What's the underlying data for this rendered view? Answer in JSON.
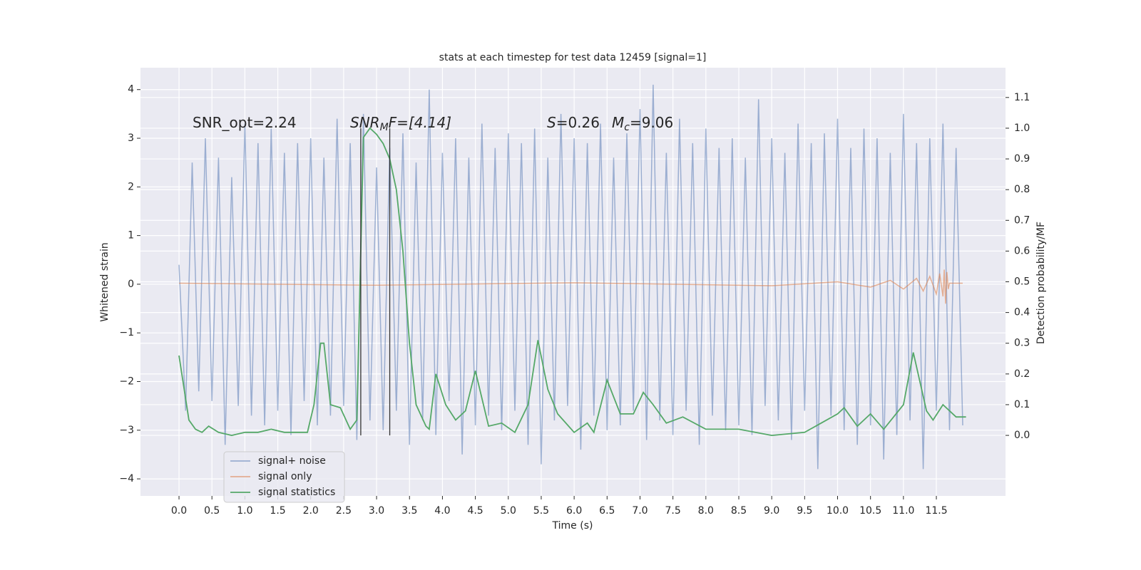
{
  "chart_data": {
    "type": "line",
    "title": "stats at each timestep for test data 12459 [signal=1]",
    "xlabel": "Time (s)",
    "ylabel": "Whitened strain",
    "y2label": "Detection probability/MF",
    "annotations": [
      {
        "text": "SNR_opt=2.24"
      },
      {
        "text": "SNR",
        "sub": "M",
        "rest": "F=[4.14]"
      },
      {
        "text": "S",
        "rest": "=0.26"
      },
      {
        "text": "M",
        "sub": "c",
        "rest": "=9.06"
      }
    ],
    "xlim": [
      -0.585,
      12.55
    ],
    "ylim": [
      -4.35,
      4.45
    ],
    "y2lim": [
      -0.197,
      1.197
    ],
    "xticks": [
      {
        "value": 0,
        "label": "0.0"
      },
      0.5,
      {
        "value": 1,
        "label": "1.0"
      },
      1.5,
      {
        "value": 2,
        "label": "2.0"
      },
      2.5,
      {
        "value": 3,
        "label": "3.0"
      },
      3.5,
      {
        "value": 4,
        "label": "4.0"
      },
      4.5,
      {
        "value": 5,
        "label": "5.0"
      },
      5.5,
      {
        "value": 6,
        "label": "6.0"
      },
      6.5,
      {
        "value": 7,
        "label": "7.0"
      },
      7.5,
      {
        "value": 8,
        "label": "8.0"
      },
      8.5,
      {
        "value": 9,
        "label": "9.0"
      },
      9.5,
      {
        "value": 10,
        "label": "10.0"
      },
      10.5,
      {
        "value": 11,
        "label": "11.0"
      },
      11.5
    ],
    "yticks": [
      {
        "value": -4,
        "label": "−4"
      },
      {
        "value": -3,
        "label": "−3"
      },
      {
        "value": -2,
        "label": "−2"
      },
      {
        "value": -1,
        "label": "−1"
      },
      0,
      1,
      2,
      3,
      4
    ],
    "y2ticks": [
      {
        "value": 0,
        "label": "0.0"
      },
      0.1,
      0.2,
      0.3,
      0.4,
      0.5,
      0.6,
      0.7,
      0.8,
      0.9,
      {
        "value": 1,
        "label": "1.0"
      },
      1.1
    ],
    "grid": true,
    "legend": "lower left",
    "vlines": {
      "x": [
        2.76,
        3.2
      ],
      "ymin": 0,
      "ymax": 1,
      "axis": "y2",
      "color": "#333333"
    },
    "series": [
      {
        "name": "signal+ noise",
        "color": "#4c72b0",
        "alpha": 0.5,
        "x": [
          0,
          0.1,
          0.2,
          0.3,
          0.4,
          0.5,
          0.6,
          0.7,
          0.8,
          0.9,
          1,
          1.1,
          1.2,
          1.3,
          1.4,
          1.5,
          1.6,
          1.7,
          1.8,
          1.9,
          2,
          2.1,
          2.2,
          2.3,
          2.4,
          2.5,
          2.6,
          2.7,
          2.8,
          2.9,
          3,
          3.1,
          3.2,
          3.3,
          3.4,
          3.5,
          3.6,
          3.7,
          3.8,
          3.9,
          4,
          4.1,
          4.2,
          4.3,
          4.4,
          4.5,
          4.6,
          4.7,
          4.8,
          4.9,
          5,
          5.1,
          5.2,
          5.3,
          5.4,
          5.5,
          5.6,
          5.7,
          5.8,
          5.9,
          6,
          6.1,
          6.2,
          6.3,
          6.4,
          6.5,
          6.6,
          6.7,
          6.8,
          6.9,
          7,
          7.1,
          7.2,
          7.3,
          7.4,
          7.5,
          7.6,
          7.7,
          7.8,
          7.9,
          8,
          8.1,
          8.2,
          8.3,
          8.4,
          8.5,
          8.6,
          8.7,
          8.8,
          8.9,
          9,
          9.1,
          9.2,
          9.3,
          9.4,
          9.5,
          9.6,
          9.7,
          9.8,
          9.9,
          10,
          10.1,
          10.2,
          10.3,
          10.4,
          10.5,
          10.6,
          10.7,
          10.8,
          10.9,
          11,
          11.1,
          11.2,
          11.3,
          11.4,
          11.5,
          11.6,
          11.7,
          11.8,
          11.9
        ],
        "values": [
          0.4,
          -2.6,
          2.5,
          -2.2,
          3.0,
          -2.4,
          2.6,
          -3.3,
          2.2,
          -2.5,
          3.3,
          -2.7,
          2.9,
          -2.9,
          3.2,
          -2.6,
          2.7,
          -3.1,
          2.9,
          -2.4,
          3.0,
          -2.9,
          2.6,
          -2.7,
          3.4,
          -2.5,
          2.9,
          -3.2,
          3.5,
          -2.8,
          2.4,
          -3.0,
          2.8,
          -2.6,
          3.1,
          -3.3,
          2.5,
          -2.8,
          4.0,
          -3.1,
          2.7,
          -2.4,
          3.0,
          -3.5,
          2.6,
          -2.9,
          3.3,
          -2.7,
          2.8,
          -3.0,
          3.1,
          -2.6,
          2.9,
          -3.3,
          3.2,
          -3.7,
          2.6,
          -2.8,
          3.5,
          -2.5,
          3.0,
          -3.4,
          2.9,
          -2.7,
          3.3,
          -3.0,
          2.6,
          -2.9,
          3.1,
          -2.6,
          3.6,
          -3.2,
          4.1,
          -2.8,
          2.7,
          -3.1,
          3.4,
          -2.6,
          2.9,
          -3.3,
          3.2,
          -2.7,
          2.8,
          -3.0,
          3.0,
          -2.9,
          2.6,
          -3.1,
          3.8,
          -2.5,
          3.0,
          -2.8,
          2.7,
          -3.2,
          3.3,
          -2.6,
          2.9,
          -3.8,
          3.1,
          -2.7,
          3.4,
          -3.0,
          2.8,
          -3.3,
          3.2,
          -2.9,
          3.0,
          -3.6,
          2.7,
          -3.1,
          3.5,
          -2.8,
          2.9,
          -3.8,
          3.0,
          -2.6,
          3.3,
          -3.0,
          2.8,
          -2.9
        ]
      },
      {
        "name": "signal only",
        "color": "#dd8452",
        "alpha": 0.6,
        "x": [
          0,
          3,
          6,
          9,
          10,
          10.5,
          10.8,
          11,
          11.2,
          11.3,
          11.4,
          11.5,
          11.55,
          11.6,
          11.62,
          11.64,
          11.66,
          11.68,
          11.7,
          11.9
        ],
        "values": [
          0.02,
          -0.02,
          0.03,
          -0.03,
          0.05,
          -0.06,
          0.08,
          -0.1,
          0.12,
          -0.14,
          0.16,
          -0.2,
          0.22,
          -0.25,
          0.3,
          -0.4,
          0.25,
          -0.1,
          0.02,
          0.02
        ]
      },
      {
        "name": "signal statistics",
        "color": "#55a868",
        "alpha": 1,
        "axis": "y2",
        "x": [
          0,
          0.15,
          0.25,
          0.35,
          0.45,
          0.6,
          0.8,
          1.0,
          1.2,
          1.4,
          1.6,
          1.8,
          1.95,
          2.05,
          2.15,
          2.2,
          2.3,
          2.45,
          2.6,
          2.7,
          2.8,
          2.9,
          3.0,
          3.1,
          3.2,
          3.3,
          3.4,
          3.5,
          3.6,
          3.75,
          3.8,
          3.9,
          4.05,
          4.2,
          4.35,
          4.5,
          4.7,
          4.9,
          5.1,
          5.3,
          5.45,
          5.6,
          5.75,
          6.0,
          6.2,
          6.3,
          6.5,
          6.7,
          6.9,
          7.05,
          7.2,
          7.4,
          7.65,
          8.0,
          8.5,
          9.0,
          9.5,
          10.0,
          10.1,
          10.3,
          10.5,
          10.7,
          11.0,
          11.15,
          11.35,
          11.45,
          11.6,
          11.8,
          11.95
        ],
        "values": [
          0.26,
          0.05,
          0.02,
          0.01,
          0.03,
          0.01,
          0.0,
          0.01,
          0.01,
          0.02,
          0.01,
          0.01,
          0.01,
          0.1,
          0.3,
          0.3,
          0.1,
          0.09,
          0.02,
          0.05,
          0.97,
          1.0,
          0.98,
          0.95,
          0.9,
          0.8,
          0.6,
          0.3,
          0.1,
          0.03,
          0.02,
          0.2,
          0.1,
          0.05,
          0.08,
          0.21,
          0.03,
          0.04,
          0.01,
          0.1,
          0.31,
          0.15,
          0.07,
          0.01,
          0.04,
          0.01,
          0.18,
          0.07,
          0.07,
          0.14,
          0.1,
          0.04,
          0.06,
          0.02,
          0.02,
          0.0,
          0.01,
          0.07,
          0.09,
          0.03,
          0.07,
          0.02,
          0.1,
          0.27,
          0.08,
          0.05,
          0.1,
          0.06,
          0.06
        ]
      }
    ]
  }
}
